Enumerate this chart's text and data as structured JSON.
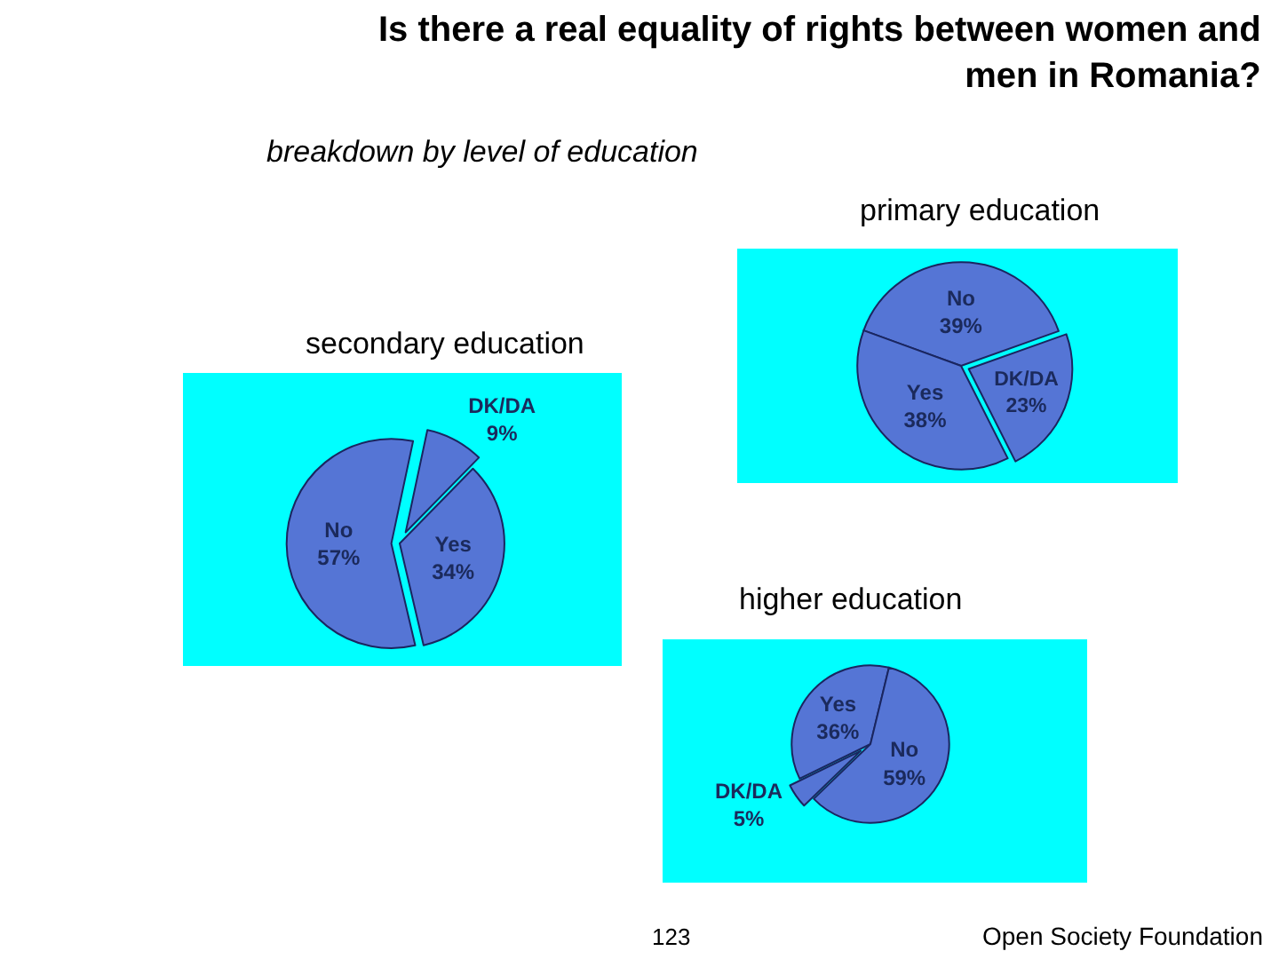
{
  "chart_data": [
    {
      "type": "other",
      "title": "Is there a real equality of rights between women and men in Romania?",
      "subtitle": "breakdown by level of education",
      "annotations": [
        "123",
        "Open Society Foundation"
      ]
    },
    {
      "type": "pie",
      "title": "primary education",
      "categories": [
        "No",
        "DK/DA",
        "Yes"
      ],
      "values": [
        39,
        23,
        38
      ],
      "value_labels": [
        "39%",
        "23%",
        "38%"
      ],
      "colors": [
        "#5575d5",
        "#5575d5",
        "#5575d5"
      ]
    },
    {
      "type": "pie",
      "title": "secondary education",
      "categories": [
        "DK/DA",
        "Yes",
        "No"
      ],
      "values": [
        9,
        34,
        57
      ],
      "value_labels": [
        "9%",
        "34%",
        "57%"
      ],
      "colors": [
        "#5575d5",
        "#5575d5",
        "#5575d5"
      ]
    },
    {
      "type": "pie",
      "title": "higher education",
      "categories": [
        "Yes",
        "No",
        "DK/DA"
      ],
      "values": [
        36,
        59,
        5
      ],
      "value_labels": [
        "36%",
        "59%",
        "5%"
      ],
      "colors": [
        "#5575d5",
        "#5575d5",
        "#5575d5"
      ]
    }
  ]
}
